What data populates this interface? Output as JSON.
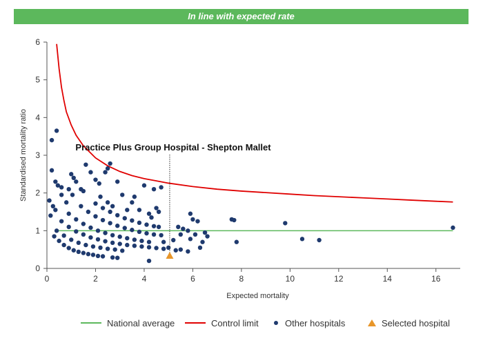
{
  "banner": {
    "text": "In line with expected rate",
    "color": "#5cb85c"
  },
  "chart_data": {
    "type": "scatter",
    "title": "",
    "xlabel": "Expected mortality",
    "ylabel": "Standardised mortality ratio",
    "xlim": [
      0,
      17
    ],
    "ylim": [
      0,
      6
    ],
    "xticks": [
      0,
      2,
      4,
      6,
      8,
      10,
      12,
      14,
      16
    ],
    "yticks": [
      0,
      1,
      2,
      3,
      4,
      5,
      6
    ],
    "grid": false,
    "legend_position": "bottom",
    "national_average": {
      "name": "National average",
      "value": 1,
      "x_range": [
        0.4,
        16.7
      ],
      "color": "#5cb85c"
    },
    "control_limit": {
      "name": "Control limit",
      "color": "#e00000",
      "points": [
        [
          0.4,
          5.95
        ],
        [
          0.5,
          5.3
        ],
        [
          0.6,
          4.8
        ],
        [
          0.7,
          4.45
        ],
        [
          0.8,
          4.15
        ],
        [
          1.0,
          3.8
        ],
        [
          1.2,
          3.53
        ],
        [
          1.5,
          3.25
        ],
        [
          2.0,
          2.93
        ],
        [
          2.5,
          2.72
        ],
        [
          3.0,
          2.57
        ],
        [
          3.5,
          2.46
        ],
        [
          4.0,
          2.38
        ],
        [
          4.5,
          2.32
        ],
        [
          5.0,
          2.26
        ],
        [
          6.0,
          2.17
        ],
        [
          7.0,
          2.1
        ],
        [
          8.0,
          2.05
        ],
        [
          9.0,
          2.01
        ],
        [
          10.0,
          1.97
        ],
        [
          11.0,
          1.93
        ],
        [
          12.0,
          1.9
        ],
        [
          13.0,
          1.87
        ],
        [
          14.0,
          1.84
        ],
        [
          15.0,
          1.81
        ],
        [
          16.0,
          1.78
        ],
        [
          16.7,
          1.76
        ]
      ]
    },
    "other_hospitals": {
      "name": "Other hospitals",
      "color": "#1f3a6e",
      "points": [
        [
          0.2,
          3.4
        ],
        [
          0.4,
          3.65
        ],
        [
          0.2,
          2.6
        ],
        [
          0.35,
          2.3
        ],
        [
          0.45,
          2.2
        ],
        [
          0.25,
          1.65
        ],
        [
          0.35,
          1.55
        ],
        [
          0.6,
          1.95
        ],
        [
          0.6,
          2.15
        ],
        [
          0.8,
          1.75
        ],
        [
          0.9,
          2.1
        ],
        [
          1.0,
          2.5
        ],
        [
          1.05,
          1.95
        ],
        [
          1.1,
          2.4
        ],
        [
          1.2,
          2.3
        ],
        [
          1.4,
          2.1
        ],
        [
          1.5,
          2.05
        ],
        [
          1.6,
          2.75
        ],
        [
          1.8,
          2.55
        ],
        [
          2.0,
          2.35
        ],
        [
          2.15,
          2.25
        ],
        [
          2.4,
          2.55
        ],
        [
          2.5,
          2.65
        ],
        [
          2.6,
          2.78
        ],
        [
          2.9,
          2.3
        ],
        [
          2.2,
          1.9
        ],
        [
          2.5,
          1.75
        ],
        [
          2.7,
          1.65
        ],
        [
          3.1,
          1.95
        ],
        [
          3.3,
          1.55
        ],
        [
          3.5,
          1.75
        ],
        [
          3.6,
          1.9
        ],
        [
          3.8,
          1.55
        ],
        [
          4.0,
          2.2
        ],
        [
          4.2,
          1.45
        ],
        [
          4.3,
          1.35
        ],
        [
          4.4,
          2.1
        ],
        [
          4.5,
          1.6
        ],
        [
          4.6,
          1.5
        ],
        [
          4.7,
          2.15
        ],
        [
          0.1,
          1.8
        ],
        [
          0.15,
          1.4
        ],
        [
          0.3,
          0.85
        ],
        [
          0.5,
          0.73
        ],
        [
          0.7,
          0.62
        ],
        [
          0.9,
          0.54
        ],
        [
          1.1,
          0.48
        ],
        [
          1.3,
          0.44
        ],
        [
          1.5,
          0.41
        ],
        [
          1.7,
          0.38
        ],
        [
          1.9,
          0.36
        ],
        [
          2.1,
          0.33
        ],
        [
          2.3,
          0.32
        ],
        [
          2.7,
          0.29
        ],
        [
          2.9,
          0.28
        ],
        [
          0.4,
          1.0
        ],
        [
          0.7,
          0.87
        ],
        [
          1.0,
          0.76
        ],
        [
          1.3,
          0.68
        ],
        [
          1.6,
          0.62
        ],
        [
          1.9,
          0.58
        ],
        [
          2.2,
          0.55
        ],
        [
          2.5,
          0.52
        ],
        [
          2.8,
          0.5
        ],
        [
          3.1,
          0.47
        ],
        [
          0.6,
          1.25
        ],
        [
          0.9,
          1.1
        ],
        [
          1.2,
          0.98
        ],
        [
          1.5,
          0.9
        ],
        [
          1.8,
          0.82
        ],
        [
          2.1,
          0.77
        ],
        [
          2.4,
          0.72
        ],
        [
          2.7,
          0.68
        ],
        [
          3.0,
          0.65
        ],
        [
          3.3,
          0.62
        ],
        [
          3.6,
          0.6
        ],
        [
          3.9,
          0.58
        ],
        [
          4.2,
          0.56
        ],
        [
          4.5,
          0.54
        ],
        [
          4.8,
          0.52
        ],
        [
          0.9,
          1.45
        ],
        [
          1.2,
          1.3
        ],
        [
          1.5,
          1.18
        ],
        [
          1.8,
          1.08
        ],
        [
          2.1,
          1.0
        ],
        [
          2.4,
          0.94
        ],
        [
          2.7,
          0.88
        ],
        [
          3.0,
          0.84
        ],
        [
          3.3,
          0.8
        ],
        [
          3.6,
          0.76
        ],
        [
          3.9,
          0.73
        ],
        [
          4.2,
          0.7
        ],
        [
          1.4,
          1.65
        ],
        [
          1.7,
          1.5
        ],
        [
          2.0,
          1.38
        ],
        [
          2.3,
          1.28
        ],
        [
          2.6,
          1.2
        ],
        [
          2.9,
          1.13
        ],
        [
          3.2,
          1.07
        ],
        [
          3.5,
          1.02
        ],
        [
          3.8,
          0.97
        ],
        [
          4.1,
          0.93
        ],
        [
          4.4,
          0.9
        ],
        [
          4.7,
          0.88
        ],
        [
          2.0,
          1.72
        ],
        [
          2.3,
          1.6
        ],
        [
          2.6,
          1.5
        ],
        [
          2.9,
          1.41
        ],
        [
          3.2,
          1.33
        ],
        [
          3.5,
          1.27
        ],
        [
          3.8,
          1.21
        ],
        [
          4.1,
          1.16
        ],
        [
          4.4,
          1.12
        ],
        [
          4.6,
          1.1
        ],
        [
          4.2,
          0.2
        ],
        [
          4.8,
          0.7
        ],
        [
          5.0,
          0.55
        ],
        [
          5.3,
          0.48
        ],
        [
          5.5,
          0.5
        ],
        [
          5.2,
          0.75
        ],
        [
          5.5,
          0.9
        ],
        [
          5.4,
          1.1
        ],
        [
          5.6,
          1.05
        ],
        [
          5.8,
          1.0
        ],
        [
          5.9,
          1.45
        ],
        [
          6.0,
          1.3
        ],
        [
          6.2,
          1.25
        ],
        [
          6.3,
          0.55
        ],
        [
          6.4,
          0.7
        ],
        [
          5.8,
          0.45
        ],
        [
          6.5,
          0.95
        ],
        [
          6.1,
          0.9
        ],
        [
          5.9,
          0.78
        ],
        [
          6.6,
          0.85
        ],
        [
          7.6,
          1.3
        ],
        [
          7.7,
          1.28
        ],
        [
          7.8,
          0.7
        ],
        [
          9.8,
          1.2
        ],
        [
          10.5,
          0.78
        ],
        [
          11.2,
          0.75
        ],
        [
          16.7,
          1.08
        ]
      ]
    },
    "selected_hospital": {
      "name": "Selected hospital",
      "label": "Practice Plus Group Hospital - Shepton Mallet",
      "x": 5.05,
      "y": 0.33,
      "color": "#e8962a"
    }
  }
}
